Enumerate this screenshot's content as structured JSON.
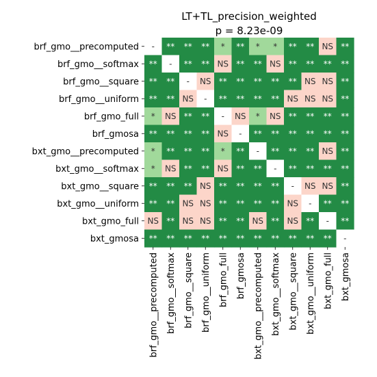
{
  "chart_data": {
    "type": "heatmap",
    "title_lines": [
      "LT+TL_precision_weighted",
      "p = 8.23e-09"
    ],
    "rows": [
      "brf_gmo__precomputed",
      "brf_gmo__softmax",
      "brf_gmo__square",
      "brf_gmo__uniform",
      "brf_gmo_full",
      "brf_gmosa",
      "bxt_gmo__precomputed",
      "bxt_gmo__softmax",
      "bxt_gmo__square",
      "bxt_gmo__uniform",
      "bxt_gmo_full",
      "bxt_gmosa"
    ],
    "columns": [
      "brf_gmo__precomputed",
      "brf_gmo__softmax",
      "brf_gmo__square",
      "brf_gmo__uniform",
      "brf_gmo_full",
      "brf_gmosa",
      "bxt_gmo__precomputed",
      "bxt_gmo__softmax",
      "bxt_gmo__square",
      "bxt_gmo__uniform",
      "bxt_gmo_full",
      "bxt_gmosa"
    ],
    "cells": [
      [
        "-",
        "**",
        "**",
        "**",
        "*",
        "**",
        "*",
        "*",
        "**",
        "**",
        "NS",
        "**"
      ],
      [
        "**",
        "-",
        "**",
        "**",
        "NS",
        "**",
        "**",
        "NS",
        "**",
        "**",
        "**",
        "**"
      ],
      [
        "**",
        "**",
        "-",
        "NS",
        "**",
        "**",
        "**",
        "**",
        "**",
        "NS",
        "NS",
        "**"
      ],
      [
        "**",
        "**",
        "NS",
        "-",
        "**",
        "**",
        "**",
        "**",
        "NS",
        "NS",
        "NS",
        "**"
      ],
      [
        "*",
        "NS",
        "**",
        "**",
        "-",
        "NS",
        "*",
        "NS",
        "**",
        "**",
        "**",
        "**"
      ],
      [
        "**",
        "**",
        "**",
        "**",
        "NS",
        "-",
        "**",
        "**",
        "**",
        "**",
        "**",
        "**"
      ],
      [
        "*",
        "**",
        "**",
        "**",
        "*",
        "**",
        "-",
        "**",
        "**",
        "**",
        "NS",
        "**"
      ],
      [
        "*",
        "NS",
        "**",
        "**",
        "NS",
        "**",
        "**",
        "-",
        "**",
        "**",
        "**",
        "**"
      ],
      [
        "**",
        "**",
        "**",
        "NS",
        "**",
        "**",
        "**",
        "**",
        "-",
        "NS",
        "NS",
        "**"
      ],
      [
        "**",
        "**",
        "NS",
        "NS",
        "**",
        "**",
        "**",
        "**",
        "NS",
        "-",
        "**",
        "**"
      ],
      [
        "NS",
        "**",
        "NS",
        "NS",
        "**",
        "**",
        "NS",
        "**",
        "NS",
        "**",
        "-",
        "**"
      ],
      [
        "**",
        "**",
        "**",
        "**",
        "**",
        "**",
        "**",
        "**",
        "**",
        "**",
        "**",
        "-"
      ]
    ],
    "colors": {
      "**": "#238b45",
      "*": "#a1d99b",
      "NS": "#fcd5c9",
      "-": "#ffffff"
    },
    "text_colors": {
      "**": "#ffffff",
      "*": "#333333",
      "NS": "#333333",
      "-": "#333333"
    }
  }
}
